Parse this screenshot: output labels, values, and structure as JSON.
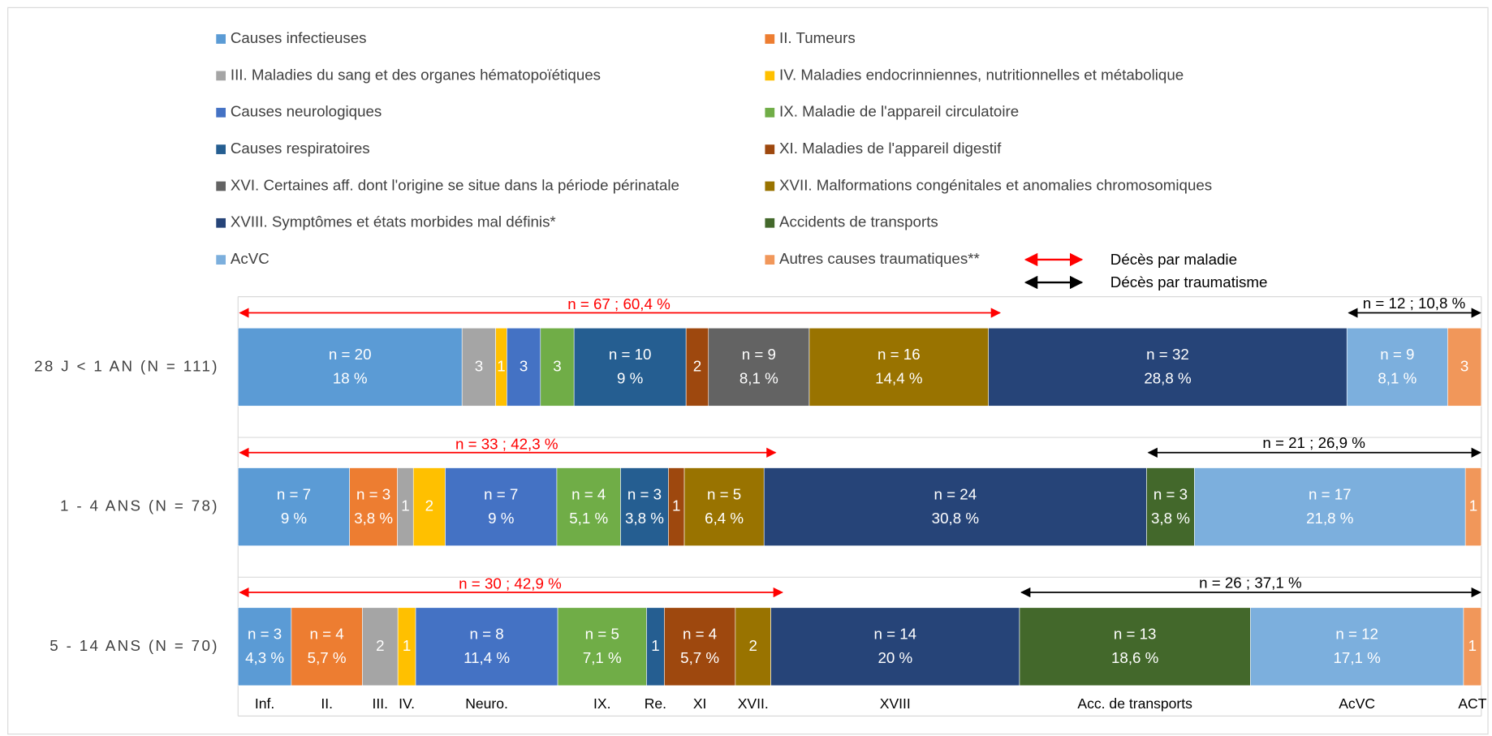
{
  "chart_data": {
    "type": "stacked-bar-horizontal",
    "categories": [
      "28 J < 1 AN (N = 111)",
      "1 - 4 ANS (N = 78)",
      "5 - 14 ANS (N = 70)"
    ],
    "series": [
      {
        "name": "Causes infectieuses",
        "short_label": "Inf.",
        "color": "#5b9bd5",
        "values": [
          20,
          7,
          3
        ],
        "value_labels": [
          "n = 20",
          "n = 7",
          "n = 3"
        ],
        "percents": [
          18,
          9,
          4.3
        ],
        "percent_labels": [
          "18 %",
          "9 %",
          "4,3 %"
        ]
      },
      {
        "name": "II. Tumeurs",
        "short_label": "II.",
        "color": "#ed7d31",
        "values": [
          null,
          3,
          4
        ],
        "value_labels": [
          null,
          "n = 3",
          "n = 4"
        ],
        "percents": [
          null,
          3.8,
          5.7
        ],
        "percent_labels": [
          null,
          "3,8 %",
          "5,7 %"
        ]
      },
      {
        "name": "III. Maladies du sang et des organes hématopoïétiques",
        "short_label": "III.",
        "color": "#a5a5a5",
        "values": [
          3,
          1,
          2
        ],
        "value_labels": [
          null,
          null,
          null
        ],
        "percents": [
          null,
          null,
          null
        ],
        "percent_labels": [
          null,
          null,
          null
        ]
      },
      {
        "name": "IV. Maladies endocrinniennes, nutritionnelles et métabolique",
        "short_label": "IV.",
        "color": "#ffc000",
        "values": [
          1,
          2,
          1
        ],
        "value_labels": [
          null,
          null,
          null
        ],
        "percents": [
          null,
          null,
          null
        ],
        "percent_labels": [
          null,
          null,
          null
        ]
      },
      {
        "name": "Causes neurologiques",
        "short_label": "Neuro.",
        "color": "#4472c4",
        "values": [
          3,
          7,
          8
        ],
        "value_labels": [
          null,
          "n = 7",
          "n = 8"
        ],
        "percents": [
          null,
          9,
          11.4
        ],
        "percent_labels": [
          null,
          "9 %",
          "11,4 %"
        ]
      },
      {
        "name": "IX. Maladie de l'appareil circulatoire",
        "short_label": "IX.",
        "color": "#70ad47",
        "values": [
          3,
          4,
          5
        ],
        "value_labels": [
          null,
          "n = 4",
          "n = 5"
        ],
        "percents": [
          null,
          5.1,
          7.1
        ],
        "percent_labels": [
          null,
          "5,1 %",
          "7,1 %"
        ]
      },
      {
        "name": "Causes respiratoires",
        "short_label": "Re.",
        "color": "#255e91",
        "values": [
          10,
          3,
          1
        ],
        "value_labels": [
          "n = 10",
          "n = 3",
          null
        ],
        "percents": [
          9,
          3.8,
          null
        ],
        "percent_labels": [
          "9 %",
          "3,8 %",
          null
        ]
      },
      {
        "name": "XI. Maladies de l'appareil digestif",
        "short_label": "XI",
        "color": "#9e480e",
        "values": [
          2,
          1,
          4
        ],
        "value_labels": [
          null,
          null,
          "n = 4"
        ],
        "percents": [
          null,
          null,
          5.7
        ],
        "percent_labels": [
          null,
          null,
          "5,7 %"
        ]
      },
      {
        "name": "XVI. Certaines aff. dont l'origine se situe dans la période périnatale",
        "short_label": null,
        "color": "#636363",
        "values": [
          9,
          null,
          null
        ],
        "value_labels": [
          "n = 9",
          null,
          null
        ],
        "percents": [
          8.1,
          null,
          null
        ],
        "percent_labels": [
          "8,1 %",
          null,
          null
        ]
      },
      {
        "name": "XVII. Malformations congénitales et anomalies chromosomiques",
        "short_label": "XVII.",
        "color": "#997300",
        "values": [
          16,
          5,
          2
        ],
        "value_labels": [
          "n = 16",
          "n = 5",
          null
        ],
        "percents": [
          14.4,
          6.4,
          null
        ],
        "percent_labels": [
          "14,4 %",
          "6,4 %",
          null
        ]
      },
      {
        "name": "XVIII. Symptômes et états morbides mal définis*",
        "short_label": "XVIII",
        "color": "#264478",
        "values": [
          32,
          24,
          14
        ],
        "value_labels": [
          "n = 32",
          "n = 24",
          "n = 14"
        ],
        "percents": [
          28.8,
          30.8,
          20
        ],
        "percent_labels": [
          "28,8 %",
          "30,8 %",
          "20 %"
        ]
      },
      {
        "name": "Accidents de transports",
        "short_label": "Acc. de transports",
        "color": "#43682b",
        "values": [
          null,
          3,
          13
        ],
        "value_labels": [
          null,
          "n = 3",
          "n = 13"
        ],
        "percents": [
          null,
          3.8,
          18.6
        ],
        "percent_labels": [
          null,
          "3,8 %",
          "18,6 %"
        ]
      },
      {
        "name": "AcVC",
        "short_label": "AcVC",
        "color": "#7cafdd",
        "values": [
          9,
          17,
          12
        ],
        "value_labels": [
          "n = 9",
          "n = 17",
          "n = 12"
        ],
        "percents": [
          8.1,
          21.8,
          17.1
        ],
        "percent_labels": [
          "8,1 %",
          "21,8 %",
          "17,1 %"
        ]
      },
      {
        "name": "Autres causes traumatiques**",
        "short_label": "ACT",
        "color": "#f1975a",
        "values": [
          3,
          1,
          1
        ],
        "value_labels": [
          null,
          null,
          null
        ],
        "percents": [
          null,
          null,
          null
        ],
        "percent_labels": [
          null,
          null,
          null
        ]
      }
    ],
    "brackets": [
      {
        "disease": "n = 67 ; 60,4 %",
        "trauma": "n = 12 ; 10,8 %"
      },
      {
        "disease": "n = 33 ; 42,3 %",
        "trauma": "n = 21 ; 26,9 %"
      },
      {
        "disease": "n = 30 ; 42,9 %",
        "trauma": "n = 26 ; 37,1 %"
      }
    ],
    "bracket_legend": {
      "disease": "Décès par maladie",
      "trauma": "Décès par traumatisme",
      "disease_color": "#ff0000",
      "trauma_color": "#000000"
    }
  }
}
